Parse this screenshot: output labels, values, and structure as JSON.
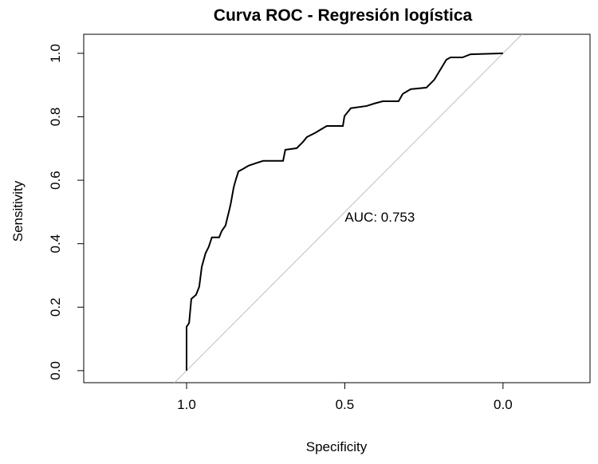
{
  "chart_data": {
    "type": "line",
    "title": "Curva ROC - Regresión logística",
    "x_label": "Specificity",
    "y_label": "Sensitivity",
    "x": [
      1.0,
      1.0,
      0.992,
      0.985,
      0.97,
      0.96,
      0.952,
      0.94,
      0.93,
      0.92,
      0.897,
      0.889,
      0.877,
      0.864,
      0.86,
      0.851,
      0.844,
      0.836,
      0.821,
      0.804,
      0.783,
      0.758,
      0.695,
      0.688,
      0.652,
      0.632,
      0.62,
      0.594,
      0.574,
      0.557,
      0.506,
      0.501,
      0.481,
      0.431,
      0.406,
      0.38,
      0.33,
      0.317,
      0.292,
      0.242,
      0.217,
      0.199,
      0.179,
      0.166,
      0.128,
      0.103,
      0.0
    ],
    "series": [
      {
        "name": "ROC",
        "color": "#000000",
        "values": [
          0.0,
          0.138,
          0.15,
          0.226,
          0.239,
          0.264,
          0.327,
          0.37,
          0.39,
          0.42,
          0.42,
          0.44,
          0.457,
          0.51,
          0.528,
          0.578,
          0.603,
          0.628,
          0.636,
          0.646,
          0.653,
          0.661,
          0.661,
          0.696,
          0.701,
          0.721,
          0.736,
          0.749,
          0.761,
          0.771,
          0.771,
          0.802,
          0.827,
          0.834,
          0.842,
          0.849,
          0.849,
          0.872,
          0.887,
          0.892,
          0.917,
          0.947,
          0.98,
          0.987,
          0.987,
          0.997,
          1.0
        ]
      }
    ],
    "annotations": [
      {
        "text": "AUC: 0.753",
        "x": 0.5,
        "y": 0.47
      }
    ],
    "xlim": [
      1.325,
      -0.275
    ],
    "ylim": [
      -0.038,
      1.06
    ],
    "xticks": [
      {
        "value": 1.0,
        "label": "1.0"
      },
      0.5,
      {
        "value": 0.0,
        "label": "0.0"
      }
    ],
    "yticks": [
      {
        "value": 0.0,
        "label": "0.0"
      },
      0.2,
      0.4,
      0.6,
      0.8,
      {
        "value": 1.0,
        "label": "1.0"
      }
    ],
    "reference_line_color": "#bebebe"
  }
}
